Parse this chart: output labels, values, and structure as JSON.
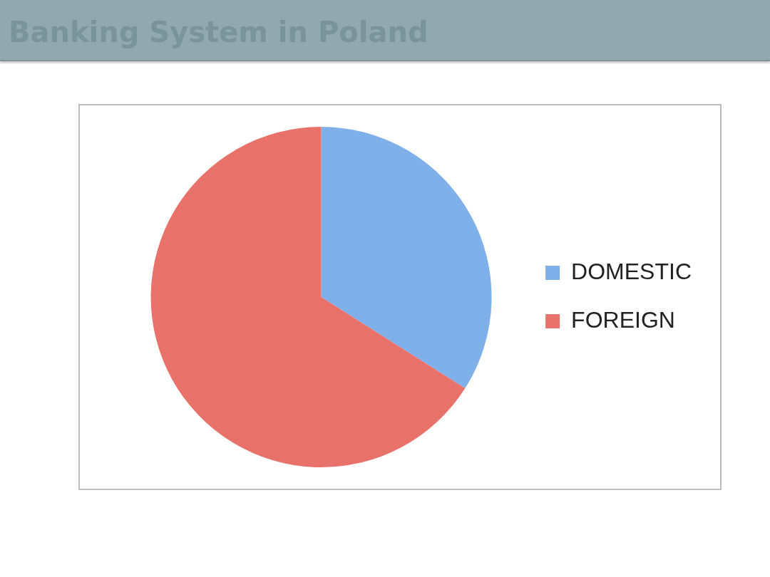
{
  "chart_data": {
    "type": "pie",
    "title": "Banking System in Poland",
    "categories": [
      "DOMESTIC",
      "FOREIGN"
    ],
    "values": [
      34,
      66
    ],
    "colors": [
      "#7fb0ea",
      "#e8716a"
    ],
    "legend": "right"
  }
}
